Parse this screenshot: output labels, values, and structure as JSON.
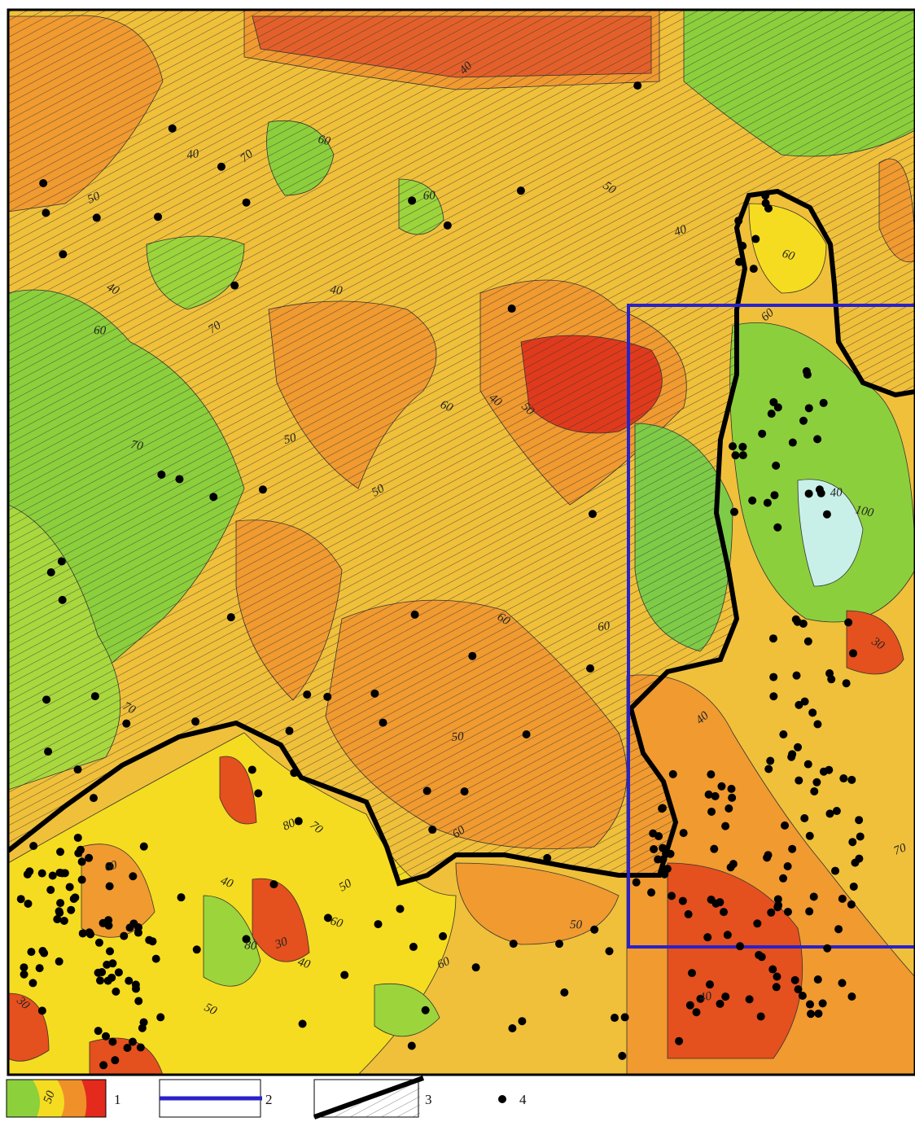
{
  "map": {
    "contour_labels": [
      "40",
      "40",
      "40",
      "50",
      "60",
      "70",
      "60",
      "50",
      "40",
      "60",
      "70",
      "60",
      "40",
      "50",
      "60",
      "50",
      "40",
      "50",
      "60",
      "70",
      "80",
      "100",
      "60",
      "40",
      "30",
      "30",
      "40",
      "60",
      "50",
      "70",
      "60",
      "40",
      "50",
      "80",
      "30",
      "40",
      "50",
      "60",
      "70",
      "40",
      "50",
      "60",
      "70",
      "60"
    ]
  },
  "legend": {
    "items": [
      {
        "label": "1",
        "swatch_label": "50"
      },
      {
        "label": "2"
      },
      {
        "label": "3"
      },
      {
        "label": "4"
      }
    ]
  }
}
